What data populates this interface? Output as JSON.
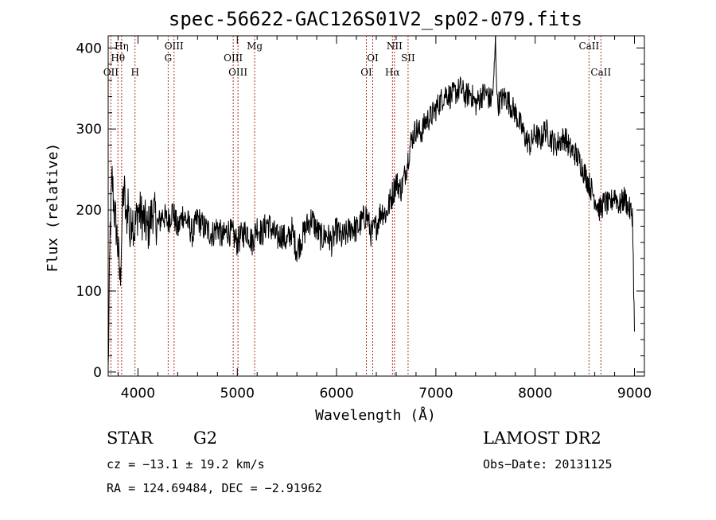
{
  "chart_data": {
    "type": "line",
    "title": "spec-56622-GAC126S01V2_sp02-079.fits",
    "xlabel": "Wavelength (Å)",
    "ylabel": "Flux (relative)",
    "xlim": [
      3700,
      9100
    ],
    "ylim": [
      -5,
      415
    ],
    "x_ticks": [
      4000,
      5000,
      6000,
      7000,
      8000,
      9000
    ],
    "x_tick_labels": [
      "4000",
      "5000",
      "6000",
      "7000",
      "8000",
      "9000"
    ],
    "y_ticks": [
      0,
      100,
      200,
      300,
      400
    ],
    "y_tick_labels": [
      "0",
      "100",
      "200",
      "300",
      "400"
    ],
    "series": [
      {
        "color": "#000000",
        "x": [
          3700,
          3720,
          3740,
          3760,
          3780,
          3800,
          3820,
          3840,
          3860,
          3880,
          3900,
          3920,
          3940,
          3960,
          3980,
          4000,
          4050,
          4100,
          4150,
          4200,
          4250,
          4300,
          4350,
          4400,
          4450,
          4500,
          4550,
          4600,
          4650,
          4700,
          4750,
          4800,
          4850,
          4900,
          4950,
          5000,
          5050,
          5100,
          5150,
          5200,
          5250,
          5300,
          5350,
          5400,
          5450,
          5500,
          5550,
          5600,
          5650,
          5700,
          5750,
          5800,
          5850,
          5900,
          5950,
          6000,
          6050,
          6100,
          6150,
          6200,
          6250,
          6300,
          6350,
          6400,
          6450,
          6500,
          6550,
          6600,
          6650,
          6700,
          6750,
          6800,
          6850,
          6900,
          6950,
          7000,
          7050,
          7100,
          7150,
          7200,
          7250,
          7300,
          7350,
          7400,
          7450,
          7500,
          7550,
          7580,
          7600,
          7620,
          7650,
          7700,
          7750,
          7800,
          7850,
          7900,
          7950,
          8000,
          8050,
          8100,
          8150,
          8200,
          8250,
          8300,
          8350,
          8400,
          8450,
          8500,
          8550,
          8600,
          8650,
          8700,
          8750,
          8800,
          8850,
          8900,
          8950,
          8980,
          9000
        ],
        "y": [
          0,
          175,
          240,
          200,
          180,
          150,
          110,
          190,
          230,
          180,
          215,
          160,
          200,
          175,
          185,
          200,
          190,
          175,
          200,
          180,
          195,
          185,
          200,
          175,
          195,
          185,
          170,
          190,
          180,
          175,
          170,
          180,
          165,
          175,
          170,
          160,
          170,
          175,
          160,
          180,
          170,
          185,
          175,
          165,
          170,
          160,
          175,
          150,
          165,
          180,
          190,
          175,
          165,
          170,
          160,
          175,
          165,
          170,
          180,
          175,
          185,
          195,
          170,
          180,
          200,
          195,
          215,
          235,
          225,
          250,
          285,
          300,
          295,
          310,
          315,
          325,
          335,
          345,
          340,
          345,
          350,
          340,
          345,
          330,
          340,
          345,
          335,
          350,
          410,
          330,
          335,
          340,
          330,
          320,
          305,
          290,
          280,
          295,
          285,
          300,
          290,
          280,
          285,
          290,
          275,
          270,
          260,
          245,
          230,
          215,
          200,
          210,
          205,
          220,
          205,
          215,
          200,
          195,
          50
        ]
      }
    ],
    "spectral_lines": [
      {
        "label": "OII",
        "wavelength": 3727,
        "row": 3
      },
      {
        "label": "Hη",
        "wavelength": 3835,
        "row": 1
      },
      {
        "label": "Hθ",
        "wavelength": 3798,
        "row": 2
      },
      {
        "label": "H",
        "wavelength": 3970,
        "row": 3
      },
      {
        "label": "OIII",
        "wavelength": 4363,
        "row": 1
      },
      {
        "label": "G",
        "wavelength": 4304,
        "row": 2
      },
      {
        "label": "OIII",
        "wavelength": 4959,
        "row": 2
      },
      {
        "label": "OIII",
        "wavelength": 5007,
        "row": 3
      },
      {
        "label": "Mg",
        "wavelength": 5175,
        "row": 1
      },
      {
        "label": "OI",
        "wavelength": 6364,
        "row": 2
      },
      {
        "label": "OI",
        "wavelength": 6300,
        "row": 3
      },
      {
        "label": "NII",
        "wavelength": 6583,
        "row": 1
      },
      {
        "label": "Hα",
        "wavelength": 6563,
        "row": 3
      },
      {
        "label": "SII",
        "wavelength": 6720,
        "row": 2
      },
      {
        "label": "CaII",
        "wavelength": 8542,
        "row": 1
      },
      {
        "label": "CaII",
        "wavelength": 8662,
        "row": 3
      }
    ],
    "grid": false,
    "line_marker_color": "#b03020"
  },
  "info": {
    "class_label": "STAR",
    "subclass_label": "G2",
    "survey_label": "LAMOST DR2",
    "cz_text": "cz = −13.1 ± 19.2 km/s",
    "obs_date_text": "Obs−Date: 20131125",
    "radec_text": "RA = 124.69484, DEC =  −2.91962"
  }
}
